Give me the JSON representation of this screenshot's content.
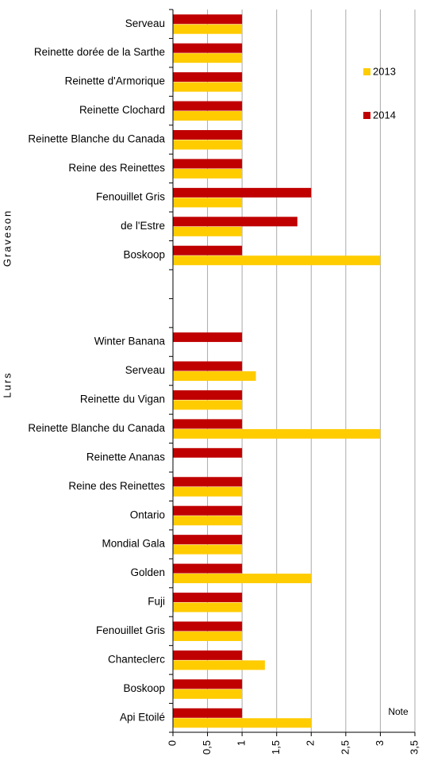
{
  "chart_data": {
    "type": "hbar",
    "categories": [
      "Serveau",
      "Reinette dorée de la Sarthe",
      "Reinette d'Armorique",
      "Reinette Clochard",
      "Reinette Blanche du Canada",
      "Reine des Reinettes",
      "Fenouillet Gris",
      "de l'Estre",
      "Boskoop",
      null,
      null,
      "Winter Banana",
      "Serveau",
      "Reinette du Vigan",
      "Reinette Blanche du Canada",
      "Reinette Ananas",
      "Reine des Reinettes",
      "Ontario",
      "Mondial Gala",
      "Golden",
      "Fuji",
      "Fenouillet Gris",
      "Chanteclerc",
      "Boskoop",
      "Api Etoilé"
    ],
    "group_labels": [
      "Graveson",
      "Lurs"
    ],
    "series": [
      {
        "name": "2013",
        "color": "#ffcc00",
        "values": [
          1,
          1,
          1,
          1,
          1,
          1,
          1,
          1,
          3,
          null,
          null,
          null,
          1.2,
          1,
          3,
          null,
          1,
          1,
          1,
          2,
          1,
          1,
          1.33,
          1,
          2
        ]
      },
      {
        "name": "2014",
        "color": "#c00000",
        "values": [
          1,
          1,
          1,
          1,
          1,
          1,
          2,
          1.8,
          1,
          null,
          null,
          1,
          1,
          1,
          1,
          1,
          1,
          1,
          1,
          1,
          1,
          1,
          1,
          1,
          1
        ]
      }
    ],
    "x_label": "Note",
    "xlim": [
      0,
      3.5
    ],
    "xticks": [
      0,
      {
        "value": 0.5,
        "label": "0,5"
      },
      1,
      {
        "value": 1.5,
        "label": "1,5"
      },
      2,
      {
        "value": 2.5,
        "label": "2,5"
      },
      3,
      {
        "value": 3.5,
        "label": "3,5"
      }
    ],
    "grid": true,
    "legend": "upper right"
  }
}
